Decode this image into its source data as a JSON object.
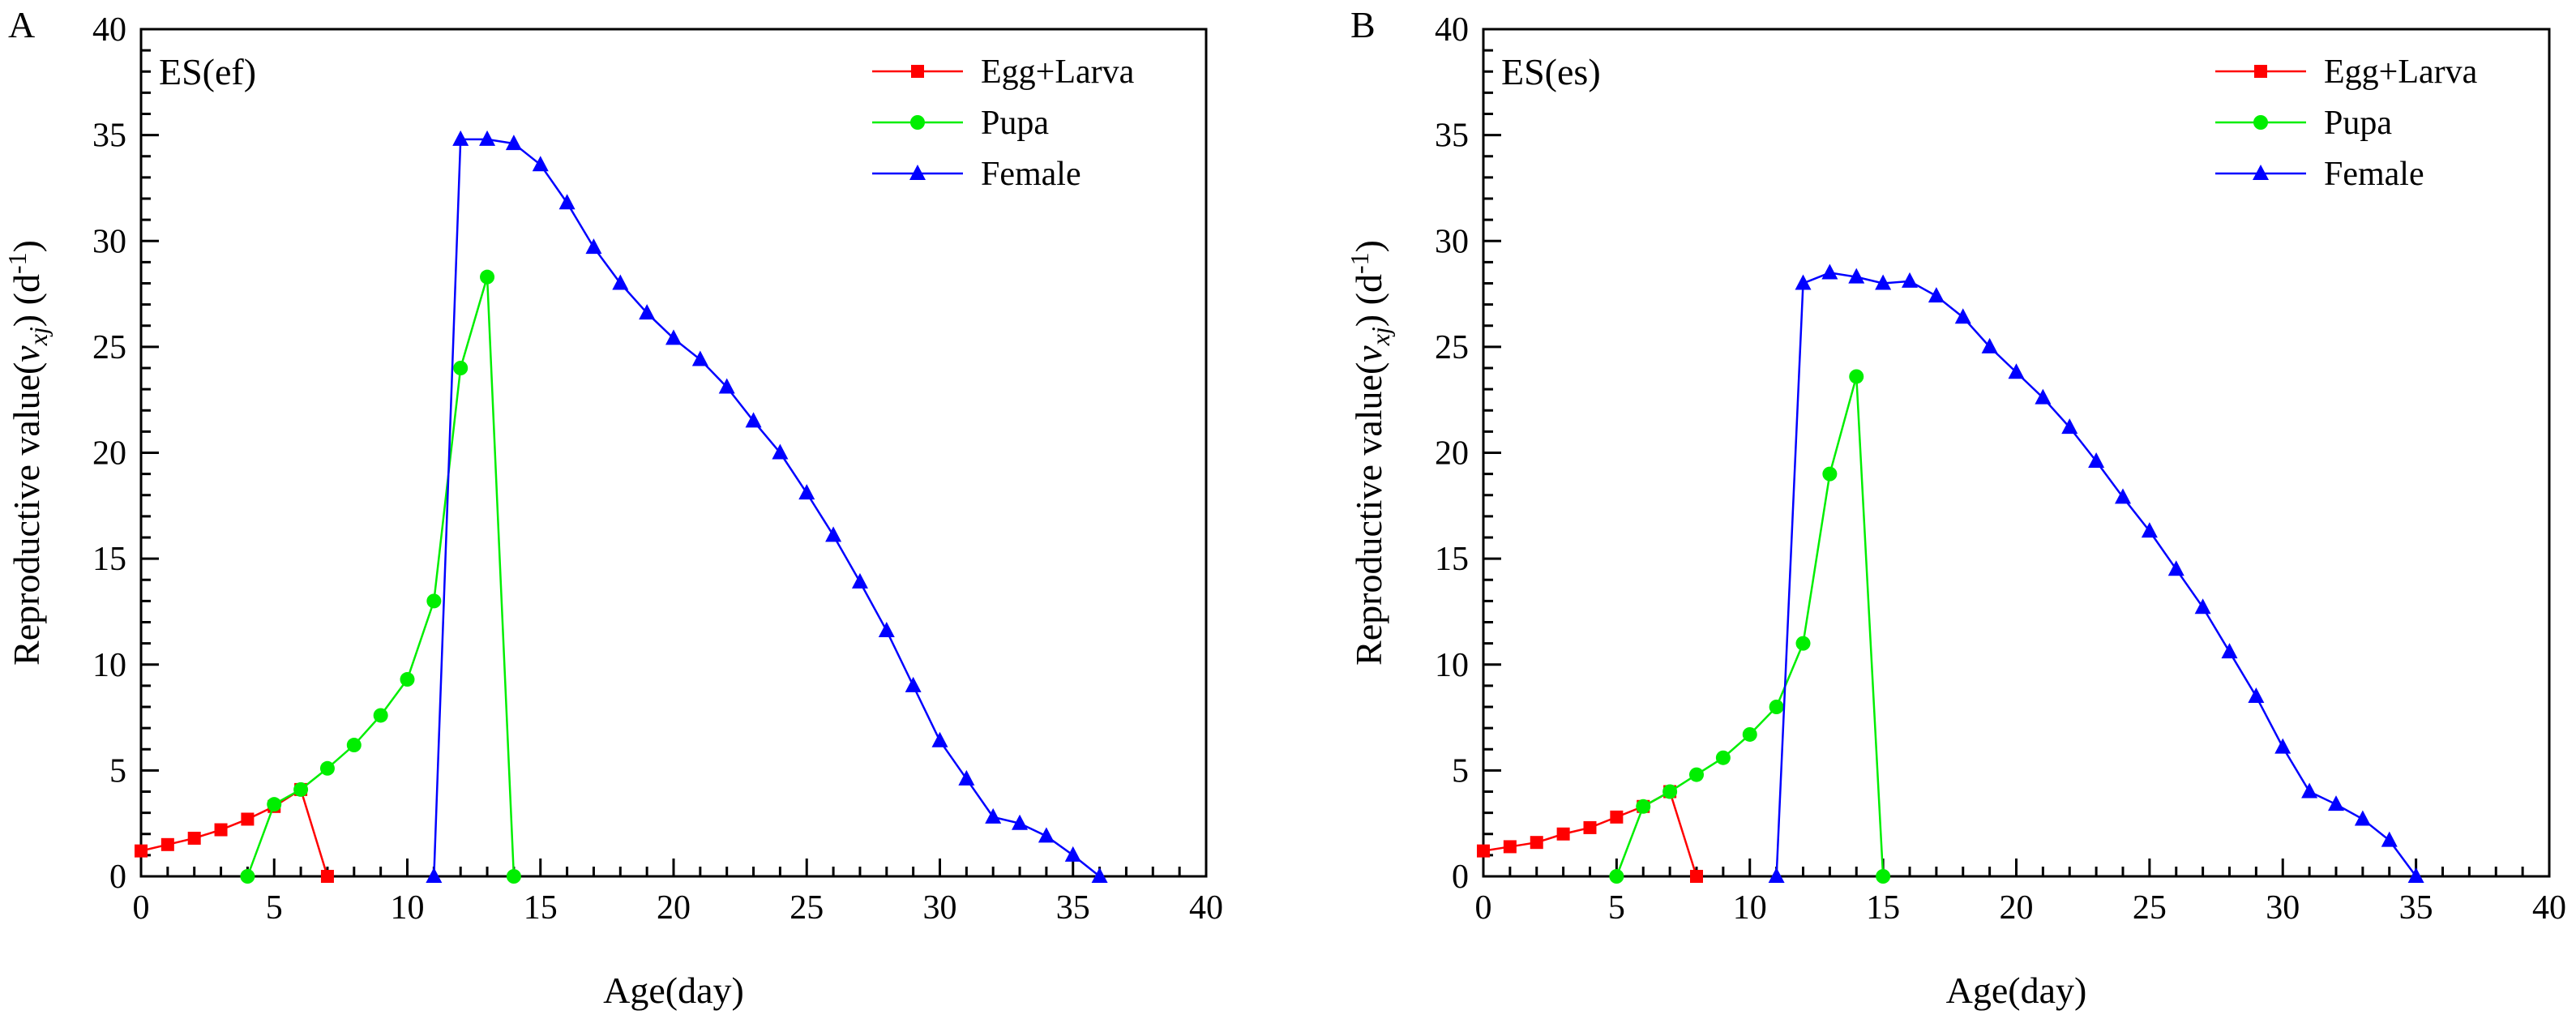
{
  "chart_data": [
    {
      "type": "line",
      "panel_label": "A",
      "inset_title": "ES(ef)",
      "xlabel": "Age(day)",
      "ylabel": {
        "prefix": "Reproductive value(",
        "var": "v",
        "sub": "xj",
        "suffix": ") (d",
        "sup": "-1",
        "close": ")"
      },
      "xlim": [
        0,
        40
      ],
      "ylim": [
        0,
        40
      ],
      "xticks": [
        0,
        5,
        10,
        15,
        20,
        25,
        30,
        35,
        40
      ],
      "yticks": [
        0,
        5,
        10,
        15,
        20,
        25,
        30,
        35,
        40
      ],
      "legend_position": "top-right",
      "series": [
        {
          "name": "Egg+Larva",
          "color": "#ff0000",
          "marker": "square",
          "x": [
            0,
            1,
            2,
            3,
            4,
            5,
            6,
            7
          ],
          "y": [
            1.2,
            1.5,
            1.8,
            2.2,
            2.7,
            3.3,
            4.1,
            0
          ]
        },
        {
          "name": "Pupa",
          "color": "#00ee00",
          "marker": "circle",
          "x": [
            4,
            5,
            6,
            7,
            8,
            9,
            10,
            11,
            12,
            13,
            14
          ],
          "y": [
            0,
            3.4,
            4.1,
            5.1,
            6.2,
            7.6,
            9.3,
            13.0,
            24.0,
            28.3,
            0
          ]
        },
        {
          "name": "Female",
          "color": "#0000ff",
          "marker": "triangle",
          "x": [
            11,
            12,
            13,
            14,
            15,
            16,
            17,
            18,
            19,
            20,
            21,
            22,
            23,
            24,
            25,
            26,
            27,
            28,
            29,
            30,
            31,
            32,
            33,
            34,
            35,
            36
          ],
          "y": [
            0,
            34.8,
            34.8,
            34.6,
            33.6,
            31.8,
            29.7,
            28.0,
            26.6,
            25.4,
            24.4,
            23.1,
            21.5,
            20.0,
            18.1,
            16.1,
            13.9,
            11.6,
            9.0,
            6.4,
            4.6,
            2.8,
            2.5,
            1.9,
            1.0,
            0
          ]
        }
      ]
    },
    {
      "type": "line",
      "panel_label": "B",
      "inset_title": "ES(es)",
      "xlabel": "Age(day)",
      "ylabel": {
        "prefix": "Reproductive value(",
        "var": "v",
        "sub": "xj",
        "suffix": ") (d",
        "sup": "-1",
        "close": ")"
      },
      "xlim": [
        0,
        40
      ],
      "ylim": [
        0,
        40
      ],
      "xticks": [
        0,
        5,
        10,
        15,
        20,
        25,
        30,
        35,
        40
      ],
      "yticks": [
        0,
        5,
        10,
        15,
        20,
        25,
        30,
        35,
        40
      ],
      "legend_position": "top-right",
      "series": [
        {
          "name": "Egg+Larva",
          "color": "#ff0000",
          "marker": "square",
          "x": [
            0,
            1,
            2,
            3,
            4,
            5,
            6,
            7,
            8
          ],
          "y": [
            1.2,
            1.4,
            1.6,
            2.0,
            2.3,
            2.8,
            3.3,
            4.0,
            0
          ]
        },
        {
          "name": "Pupa",
          "color": "#00ee00",
          "marker": "circle",
          "x": [
            5,
            6,
            7,
            8,
            9,
            10,
            11,
            12,
            13,
            14,
            15
          ],
          "y": [
            0,
            3.3,
            4.0,
            4.8,
            5.6,
            6.7,
            8.0,
            11.0,
            19.0,
            23.6,
            0
          ]
        },
        {
          "name": "Female",
          "color": "#0000ff",
          "marker": "triangle",
          "x": [
            11,
            12,
            13,
            14,
            15,
            16,
            17,
            18,
            19,
            20,
            21,
            22,
            23,
            24,
            25,
            26,
            27,
            28,
            29,
            30,
            31,
            32,
            33,
            34,
            35
          ],
          "y": [
            0,
            28.0,
            28.5,
            28.3,
            28.0,
            28.1,
            27.4,
            26.4,
            25.0,
            23.8,
            22.6,
            21.2,
            19.6,
            17.9,
            16.3,
            14.5,
            12.7,
            10.6,
            8.5,
            6.1,
            4.0,
            3.4,
            2.7,
            1.7,
            0
          ]
        }
      ]
    }
  ]
}
